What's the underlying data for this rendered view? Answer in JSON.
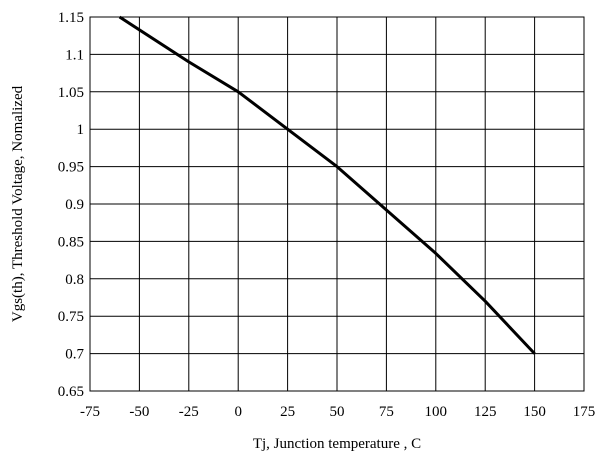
{
  "chart_data": {
    "type": "line",
    "title": "",
    "xlabel": "Tj, Junction temperature , C",
    "ylabel": "Vgs(th), Threshold Voltage, Nomalized",
    "xlim": [
      -75,
      175
    ],
    "ylim": [
      0.65,
      1.15
    ],
    "x_ticks": [
      "-75",
      "-50",
      "-25",
      "0",
      "25",
      "50",
      "75",
      "100",
      "125",
      "150",
      "175"
    ],
    "y_ticks": [
      "1.15",
      "1.1",
      "1.05",
      "1",
      "0.95",
      "0.9",
      "0.85",
      "0.8",
      "0.75",
      "0.7",
      "0.65"
    ],
    "grid": true,
    "line_color": "#000000",
    "series": [
      {
        "x": [
          -60,
          -25,
          0,
          25,
          50,
          75,
          100,
          125,
          150
        ],
        "y": [
          1.15,
          1.09,
          1.05,
          1.0,
          0.95,
          0.892,
          0.834,
          0.77,
          0.7
        ]
      }
    ]
  }
}
